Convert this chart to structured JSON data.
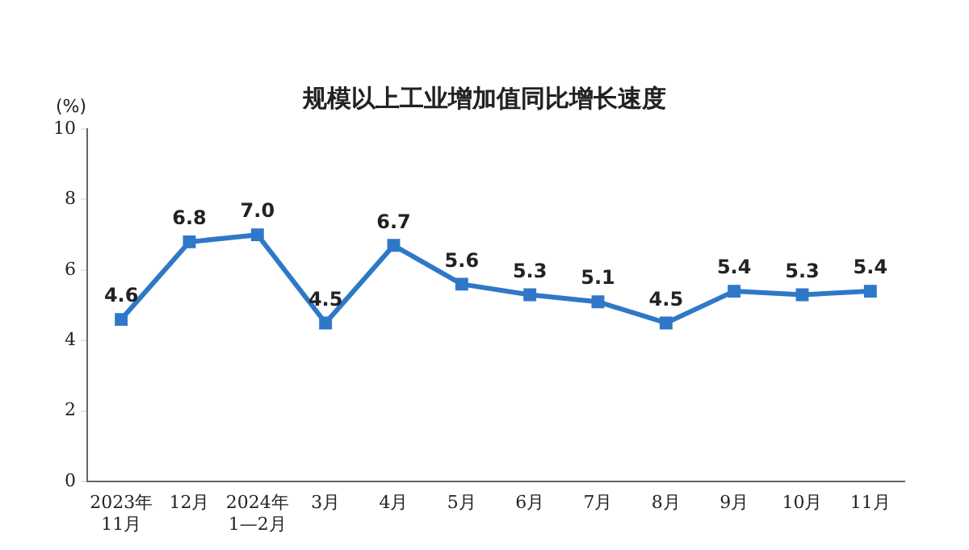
{
  "chart_data": {
    "type": "line",
    "title": "规模以上工业增加值同比增长速度",
    "ylabel": "(%)",
    "categories": [
      "2023年\n11月",
      "12月",
      "2024年\n1—2月",
      "3月",
      "4月",
      "5月",
      "6月",
      "7月",
      "8月",
      "9月",
      "10月",
      "11月"
    ],
    "series": [
      {
        "color": "#2f78c8",
        "values": [
          4.6,
          6.8,
          7.0,
          4.5,
          6.7,
          5.6,
          5.3,
          5.1,
          4.5,
          5.4,
          5.3,
          5.4
        ],
        "value_labels": [
          "4.6",
          "6.8",
          "7.0",
          "4.5",
          "6.7",
          "5.6",
          "5.3",
          "5.1",
          "4.5",
          "5.4",
          "5.3",
          "5.4"
        ]
      }
    ],
    "ylim": [
      0,
      10
    ],
    "yticks": [
      0,
      2,
      4,
      6,
      8,
      10
    ],
    "grid": false,
    "legend": false,
    "marker": "square",
    "line_style": "solid"
  }
}
